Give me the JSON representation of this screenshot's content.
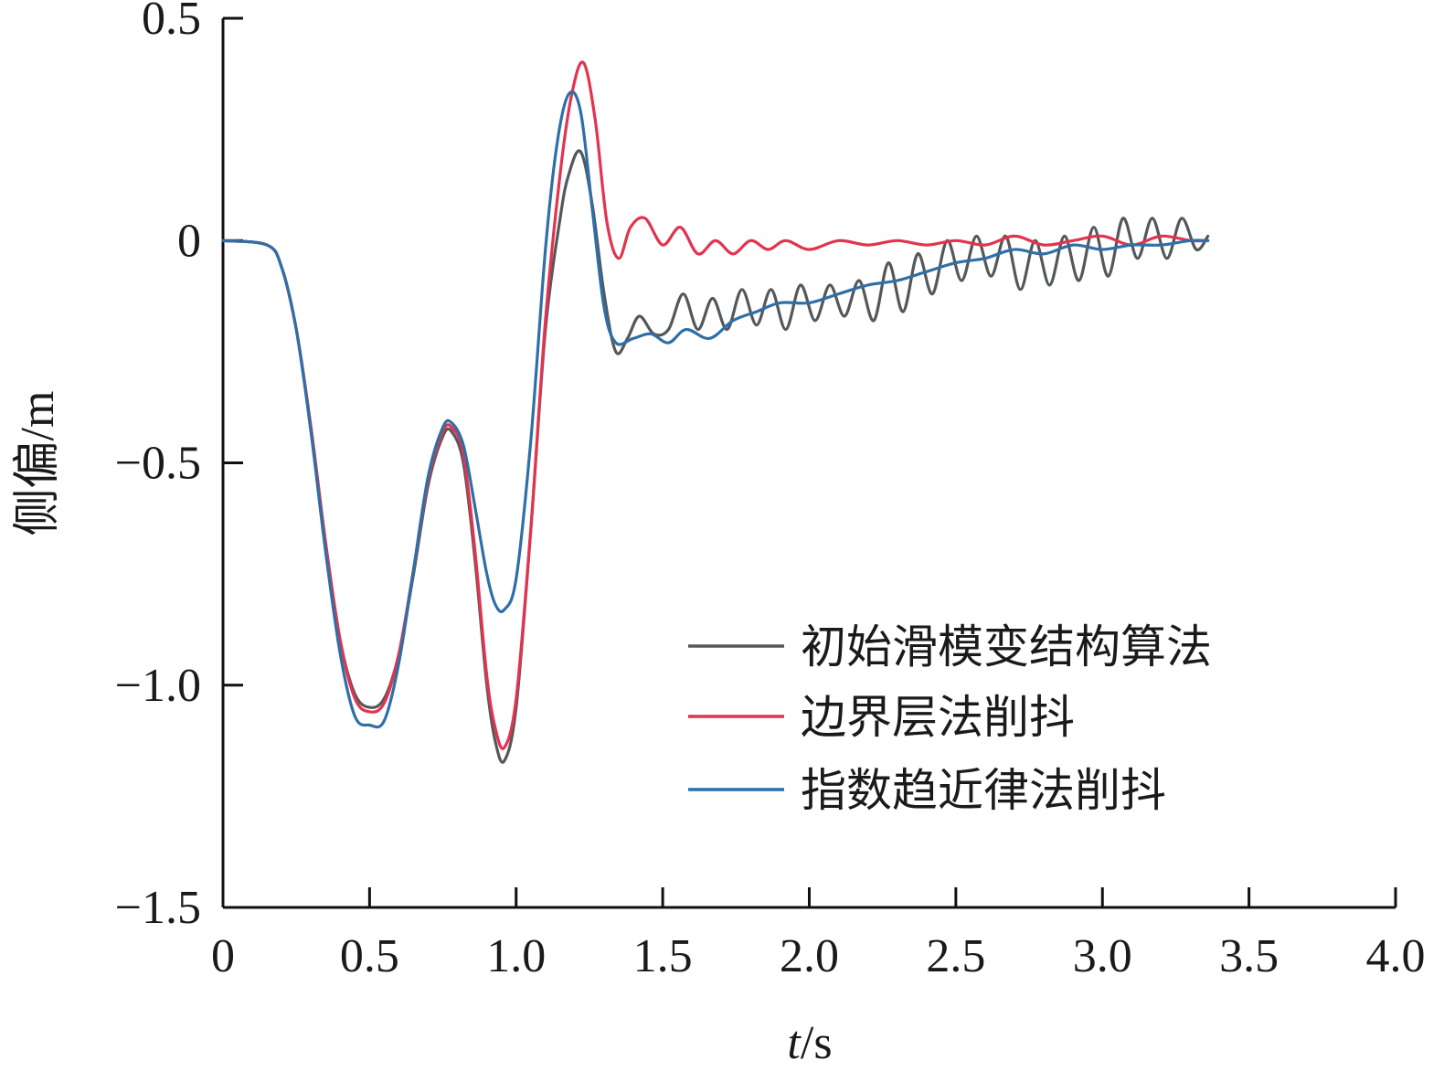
{
  "chart_data": {
    "type": "line",
    "title": "",
    "xlabel_italic": "t",
    "xlabel_unit": "/s",
    "ylabel": "侧偏/m",
    "xlim": [
      0,
      4.0
    ],
    "ylim": [
      -1.5,
      0.5
    ],
    "xticks": [
      "0",
      "0.5",
      "1.0",
      "1.5",
      "2.0",
      "2.5",
      "3.0",
      "3.5",
      "4.0"
    ],
    "yticks": [
      "0.5",
      "0",
      "−0.5",
      "−1.0",
      "−1.5"
    ],
    "legend_position": "lower-right",
    "grid": false,
    "series": [
      {
        "name": "初始滑模变结构算法",
        "color": "#55585a",
        "x": [
          0,
          0.15,
          0.2,
          0.25,
          0.3,
          0.35,
          0.4,
          0.45,
          0.5,
          0.55,
          0.6,
          0.65,
          0.7,
          0.75,
          0.78,
          0.82,
          0.86,
          0.9,
          0.93,
          0.96,
          1.0,
          1.05,
          1.1,
          1.15,
          1.18,
          1.22,
          1.26,
          1.3,
          1.34,
          1.38,
          1.42,
          1.47,
          1.52,
          1.57,
          1.62,
          1.67,
          1.72,
          1.77,
          1.82,
          1.87,
          1.92,
          1.97,
          2.02,
          2.07,
          2.12,
          2.17,
          2.22,
          2.27,
          2.32,
          2.37,
          2.42,
          2.47,
          2.52,
          2.57,
          2.62,
          2.67,
          2.72,
          2.77,
          2.82,
          2.87,
          2.92,
          2.97,
          3.02,
          3.07,
          3.12,
          3.17,
          3.22,
          3.27,
          3.32,
          3.36
        ],
        "y": [
          0,
          -0.01,
          -0.06,
          -0.2,
          -0.42,
          -0.68,
          -0.9,
          -1.02,
          -1.05,
          -1.03,
          -0.93,
          -0.75,
          -0.55,
          -0.44,
          -0.43,
          -0.5,
          -0.72,
          -1.0,
          -1.13,
          -1.17,
          -1.05,
          -0.65,
          -0.2,
          0.05,
          0.15,
          0.2,
          0.08,
          -0.12,
          -0.25,
          -0.22,
          -0.17,
          -0.21,
          -0.2,
          -0.12,
          -0.2,
          -0.13,
          -0.2,
          -0.11,
          -0.19,
          -0.11,
          -0.2,
          -0.1,
          -0.18,
          -0.1,
          -0.17,
          -0.09,
          -0.18,
          -0.05,
          -0.16,
          -0.03,
          -0.12,
          0,
          -0.09,
          0.01,
          -0.08,
          0.01,
          -0.11,
          0,
          -0.1,
          0.01,
          -0.09,
          0.03,
          -0.08,
          0.05,
          -0.04,
          0.05,
          -0.04,
          0.05,
          -0.02,
          0.01
        ]
      },
      {
        "name": "边界层法削抖",
        "color": "#e2334f",
        "x": [
          0,
          0.15,
          0.2,
          0.25,
          0.3,
          0.35,
          0.4,
          0.45,
          0.5,
          0.55,
          0.6,
          0.65,
          0.7,
          0.75,
          0.78,
          0.82,
          0.86,
          0.9,
          0.93,
          0.96,
          1.0,
          1.05,
          1.1,
          1.15,
          1.19,
          1.23,
          1.27,
          1.31,
          1.35,
          1.39,
          1.44,
          1.5,
          1.56,
          1.62,
          1.68,
          1.74,
          1.8,
          1.86,
          1.92,
          2.0,
          2.1,
          2.2,
          2.3,
          2.4,
          2.5,
          2.6,
          2.7,
          2.8,
          2.9,
          3.0,
          3.1,
          3.2,
          3.3,
          3.36
        ],
        "y": [
          0,
          -0.01,
          -0.06,
          -0.2,
          -0.42,
          -0.68,
          -0.9,
          -1.03,
          -1.06,
          -1.04,
          -0.93,
          -0.74,
          -0.54,
          -0.43,
          -0.42,
          -0.48,
          -0.7,
          -0.98,
          -1.1,
          -1.14,
          -1.03,
          -0.65,
          -0.18,
          0.15,
          0.33,
          0.4,
          0.27,
          0.04,
          -0.04,
          0.03,
          0.05,
          -0.01,
          0.03,
          -0.03,
          0.0,
          -0.03,
          0.0,
          -0.02,
          0.0,
          -0.02,
          0.0,
          -0.01,
          0.0,
          -0.01,
          0.0,
          -0.01,
          0.01,
          -0.01,
          0.0,
          0.01,
          -0.01,
          0.01,
          0.0,
          0.0
        ]
      },
      {
        "name": "指数趋近律法削抖",
        "color": "#2e6fa8",
        "x": [
          0,
          0.15,
          0.2,
          0.25,
          0.3,
          0.35,
          0.4,
          0.45,
          0.5,
          0.55,
          0.6,
          0.65,
          0.7,
          0.75,
          0.78,
          0.82,
          0.86,
          0.9,
          0.93,
          0.96,
          1.0,
          1.05,
          1.1,
          1.14,
          1.18,
          1.22,
          1.26,
          1.3,
          1.34,
          1.4,
          1.46,
          1.52,
          1.58,
          1.66,
          1.74,
          1.82,
          1.9,
          2.0,
          2.1,
          2.2,
          2.3,
          2.4,
          2.5,
          2.6,
          2.7,
          2.8,
          2.9,
          3.0,
          3.1,
          3.2,
          3.3,
          3.36
        ],
        "y": [
          0,
          -0.01,
          -0.06,
          -0.2,
          -0.43,
          -0.7,
          -0.93,
          -1.07,
          -1.09,
          -1.08,
          -0.95,
          -0.74,
          -0.53,
          -0.42,
          -0.41,
          -0.46,
          -0.6,
          -0.75,
          -0.82,
          -0.83,
          -0.76,
          -0.45,
          -0.02,
          0.22,
          0.33,
          0.29,
          0.07,
          -0.15,
          -0.23,
          -0.22,
          -0.21,
          -0.23,
          -0.2,
          -0.22,
          -0.18,
          -0.16,
          -0.14,
          -0.14,
          -0.12,
          -0.1,
          -0.09,
          -0.07,
          -0.05,
          -0.04,
          -0.02,
          -0.03,
          -0.01,
          -0.02,
          -0.01,
          -0.01,
          0.0,
          0.0
        ]
      }
    ]
  }
}
